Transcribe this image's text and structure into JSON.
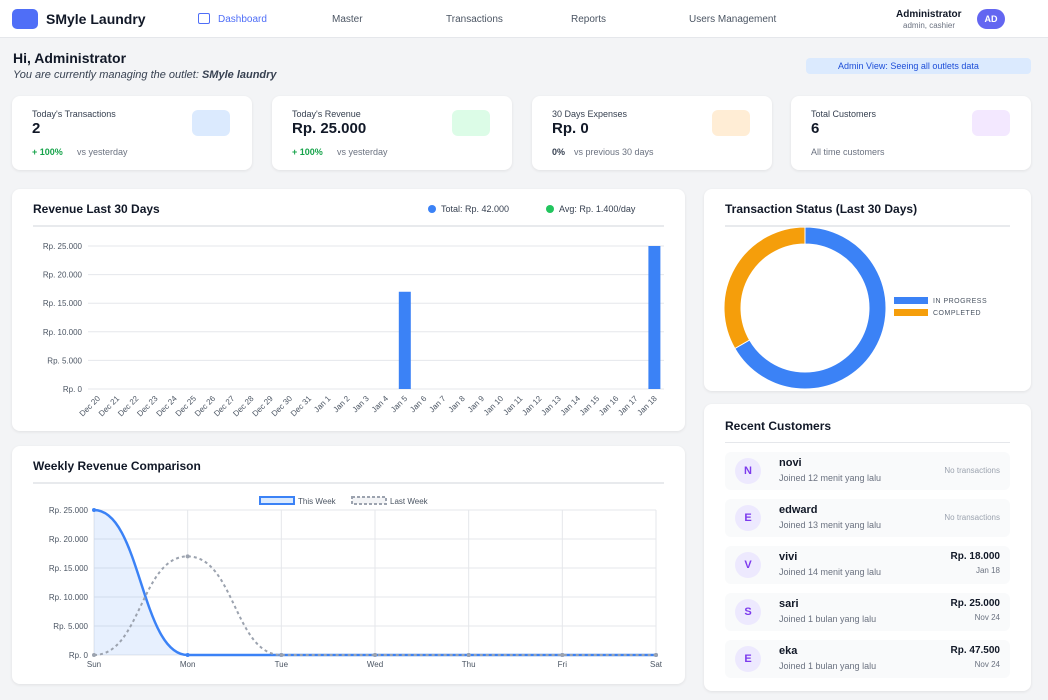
{
  "nav": {
    "brand": "SMyle Laundry",
    "items": [
      "Dashboard",
      "Master",
      "Transactions",
      "Reports",
      "Users Management"
    ],
    "user": {
      "name": "Administrator",
      "role": "admin, cashier",
      "initials": "AD"
    }
  },
  "header": {
    "greeting": "Hi, Administrator",
    "outlet_prefix": "You are currently managing the outlet:",
    "outlet": "SMyle laundry",
    "badge": "Admin View: Seeing all outlets data"
  },
  "stats": [
    {
      "label": "Today's Transactions",
      "value": "2",
      "change": "+ 100%",
      "note": "vs yesterday"
    },
    {
      "label": "Today's Revenue",
      "value": "Rp. 25.000",
      "change": "+ 100%",
      "note": "vs yesterday"
    },
    {
      "label": "30 Days Expenses",
      "value": "Rp. 0",
      "change": "0%",
      "note": "vs previous 30 days"
    },
    {
      "label": "Total Customers",
      "value": "6",
      "note": "All time customers"
    }
  ],
  "chart_data": [
    {
      "type": "bar",
      "title": "Revenue Last 30 Days",
      "legend": [
        {
          "label": "Total: Rp. 42.000",
          "color": "#3b82f6"
        },
        {
          "label": "Avg: Rp. 1.400/day",
          "color": "#22c55e"
        }
      ],
      "categories": [
        "Dec 20",
        "Dec 21",
        "Dec 22",
        "Dec 23",
        "Dec 24",
        "Dec 25",
        "Dec 26",
        "Dec 27",
        "Dec 28",
        "Dec 29",
        "Dec 30",
        "Dec 31",
        "Jan 1",
        "Jan 2",
        "Jan 3",
        "Jan 4",
        "Jan 5",
        "Jan 6",
        "Jan 7",
        "Jan 8",
        "Jan 9",
        "Jan 10",
        "Jan 11",
        "Jan 12",
        "Jan 13",
        "Jan 14",
        "Jan 15",
        "Jan 16",
        "Jan 17",
        "Jan 18"
      ],
      "values": [
        0,
        0,
        0,
        0,
        0,
        0,
        0,
        0,
        0,
        0,
        0,
        0,
        0,
        0,
        0,
        0,
        17000,
        0,
        0,
        0,
        0,
        0,
        0,
        0,
        0,
        0,
        0,
        0,
        0,
        25000
      ],
      "color": "#3b82f6",
      "ylim": [
        0,
        25000
      ],
      "yticks": [
        {
          "value": 0,
          "label": "Rp. 0"
        },
        {
          "value": 5000,
          "label": "Rp. 5.000"
        },
        {
          "value": 10000,
          "label": "Rp. 10.000"
        },
        {
          "value": 15000,
          "label": "Rp. 15.000"
        },
        {
          "value": 20000,
          "label": "Rp. 20.000"
        },
        {
          "value": 25000,
          "label": "Rp. 25.000"
        }
      ],
      "grid": true
    },
    {
      "type": "doughnut",
      "title": "Transaction Status (Last 30 Days)",
      "categories": [
        "IN PROGRESS",
        "COMPLETED"
      ],
      "values": [
        2,
        1
      ],
      "colors": [
        "#3b82f6",
        "#f59e0b"
      ],
      "legend": "right"
    },
    {
      "type": "line",
      "title": "Weekly Revenue Comparison",
      "categories": [
        "Sun",
        "Mon",
        "Tue",
        "Wed",
        "Thu",
        "Fri",
        "Sat"
      ],
      "series": [
        {
          "name": "This Week",
          "color": "#3b82f6",
          "values": [
            25000,
            0,
            0,
            0,
            0,
            0,
            0
          ],
          "fill": true
        },
        {
          "name": "Last Week",
          "color": "#9ca3af",
          "values": [
            0,
            17000,
            0,
            0,
            0,
            0,
            0
          ],
          "dashed": true
        }
      ],
      "ylim": [
        0,
        25000
      ],
      "yticks": [
        {
          "value": 0,
          "label": "Rp. 0"
        },
        {
          "value": 5000,
          "label": "Rp. 5.000"
        },
        {
          "value": 10000,
          "label": "Rp. 10.000"
        },
        {
          "value": 15000,
          "label": "Rp. 15.000"
        },
        {
          "value": 20000,
          "label": "Rp. 20.000"
        },
        {
          "value": 25000,
          "label": "Rp. 25.000"
        }
      ],
      "grid": true
    }
  ],
  "recent_customers": {
    "title": "Recent Customers",
    "items": [
      {
        "initial": "N",
        "name": "novi",
        "joined": "Joined 12 menit yang lalu",
        "amount": "No transactions"
      },
      {
        "initial": "E",
        "name": "edward",
        "joined": "Joined 13 menit yang lalu",
        "amount": "No transactions"
      },
      {
        "initial": "V",
        "name": "vivi",
        "joined": "Joined 14 menit yang lalu",
        "amount": "Rp. 18.000",
        "date": "Jan 18"
      },
      {
        "initial": "S",
        "name": "sari",
        "joined": "Joined 1 bulan yang lalu",
        "amount": "Rp. 25.000",
        "date": "Nov 24"
      },
      {
        "initial": "E",
        "name": "eka",
        "joined": "Joined 1 bulan yang lalu",
        "amount": "Rp. 47.500",
        "date": "Nov 24"
      }
    ]
  }
}
